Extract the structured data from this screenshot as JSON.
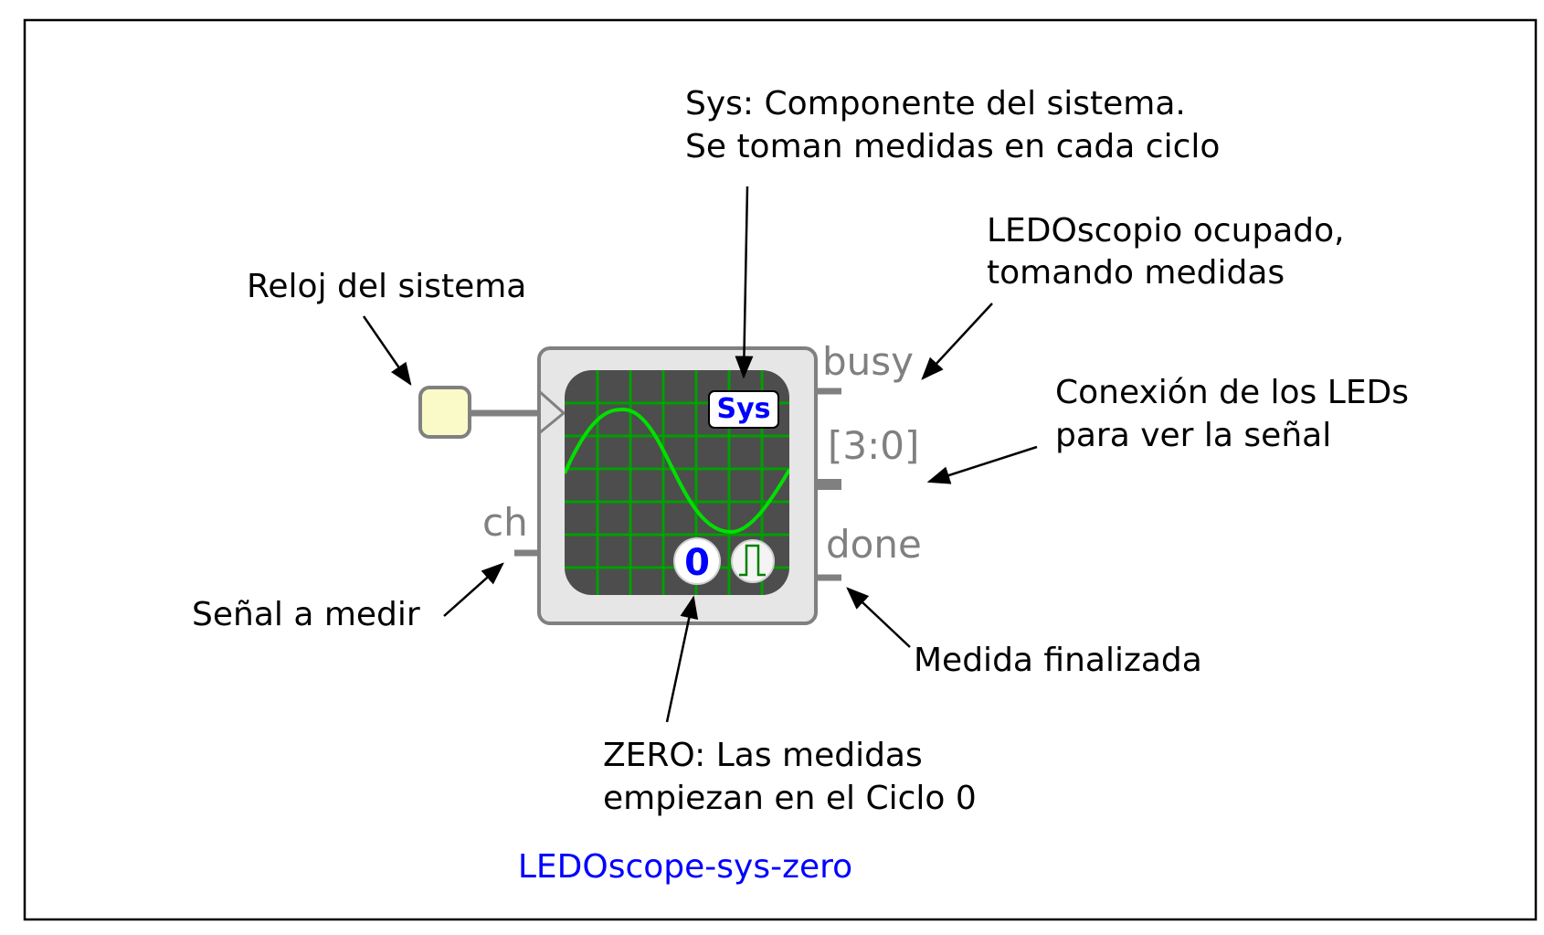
{
  "colors": {
    "frame": "#000000",
    "block_fill": "#e6e6e6",
    "block_stroke": "#808080",
    "screen": "#4d4d4d",
    "grid": "#00a000",
    "wave": "#00e000",
    "clock_fill": "#fafac8",
    "sys_text": "#0000ff",
    "title": "#0000ff",
    "port_label": "#808080"
  },
  "annotations": {
    "sys_line1": "Sys: Componente del sistema.",
    "sys_line2": "Se toman medidas en cada ciclo",
    "busy_line1": "LEDOscopio ocupado,",
    "busy_line2": "tomando medidas",
    "clock": "Reloj del sistema",
    "leds_line1": "Conexión de los LEDs",
    "leds_line2": "para ver la señal",
    "signal": "Señal a medir",
    "done": "Medida finalizada",
    "zero_line1": "ZERO: Las medidas",
    "zero_line2": "empiezan en el Ciclo 0"
  },
  "ports": {
    "busy": "busy",
    "bus": "[3:0]",
    "done": "done",
    "ch": "ch"
  },
  "block": {
    "sys_badge": "Sys",
    "zero_badge": "0",
    "pulse_icon": "pulse-icon",
    "name": "LEDOscope-sys-zero"
  }
}
